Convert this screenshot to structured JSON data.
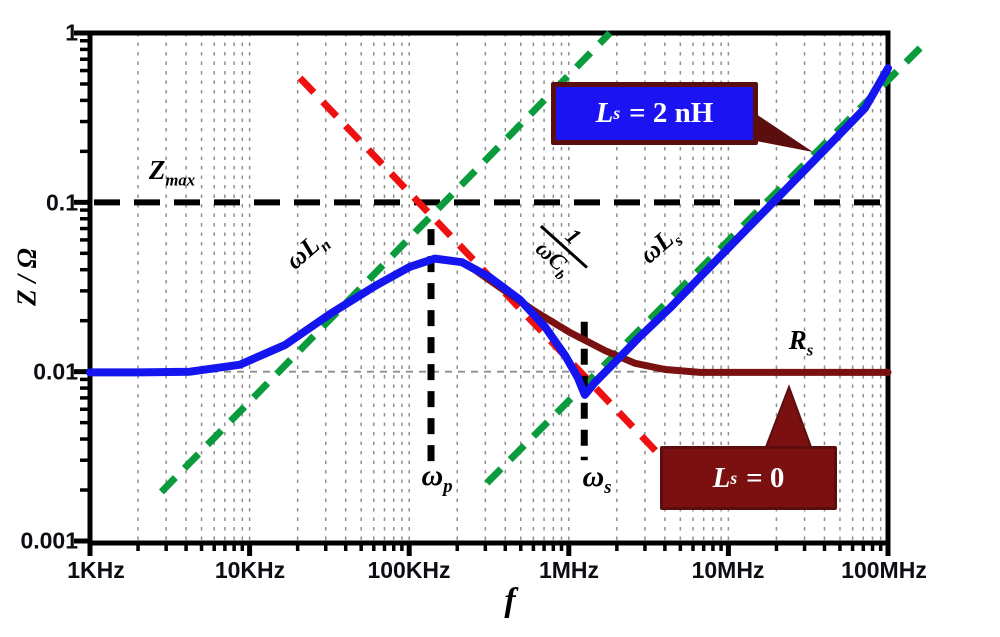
{
  "chart_data": {
    "type": "line",
    "title": "",
    "xlabel": "f",
    "ylabel": "Z / Ω",
    "x_axis": {
      "scale": "log",
      "min": 1000,
      "max": 100000000,
      "tick_labels": [
        "1KHz",
        "10KHz",
        "100KHz",
        "1MHz",
        "10MHz",
        "100MHz"
      ]
    },
    "y_axis": {
      "scale": "log",
      "min": 0.001,
      "max": 1,
      "tick_labels": [
        "1",
        "0.1",
        "0.01",
        "0.001"
      ]
    },
    "grid": "vertical log minor gridlines, dashed gray",
    "legend_position": "none (callout boxes on plot)",
    "series": [
      {
        "name": "Ls = 2 nH",
        "color": "#1515f0",
        "style": "solid",
        "points": [
          [
            1000,
            0.0099
          ],
          [
            2060,
            0.0099
          ],
          [
            4230,
            0.01
          ],
          [
            8710,
            0.011
          ],
          [
            16700,
            0.0144
          ],
          [
            31900,
            0.0219
          ],
          [
            61000,
            0.032
          ],
          [
            101000,
            0.0416
          ],
          [
            145000,
            0.0465
          ],
          [
            214000,
            0.0443
          ],
          [
            320000,
            0.0361
          ],
          [
            494000,
            0.0266
          ],
          [
            709000,
            0.0184
          ],
          [
            947000,
            0.0125
          ],
          [
            1140000,
            0.0092
          ],
          [
            1260000,
            0.0073
          ],
          [
            1450000,
            0.0086
          ],
          [
            1950000,
            0.0114
          ],
          [
            2790000,
            0.0161
          ],
          [
            4310000,
            0.0238
          ],
          [
            7130000,
            0.0388
          ],
          [
            12700000,
            0.0677
          ],
          [
            24300000,
            0.126
          ],
          [
            46500000,
            0.236
          ],
          [
            71800000,
            0.36
          ],
          [
            100000000,
            0.62
          ]
        ]
      },
      {
        "name": "Ls = 0",
        "color": "#7a1010",
        "style": "solid",
        "points": [
          [
            1000,
            0.0099
          ],
          [
            2060,
            0.0099
          ],
          [
            4230,
            0.01
          ],
          [
            8710,
            0.011
          ],
          [
            16700,
            0.0144
          ],
          [
            31900,
            0.0219
          ],
          [
            61000,
            0.032
          ],
          [
            101000,
            0.0416
          ],
          [
            145000,
            0.0465
          ],
          [
            214000,
            0.0443
          ],
          [
            258000,
            0.0399
          ],
          [
            371000,
            0.0314
          ],
          [
            614000,
            0.0227
          ],
          [
            1020000,
            0.017
          ],
          [
            1690000,
            0.0133
          ],
          [
            2600000,
            0.0112
          ],
          [
            4010000,
            0.0103
          ],
          [
            6640000,
            0.0099
          ],
          [
            100000000,
            0.0099
          ]
        ]
      }
    ],
    "asymptotes": [
      {
        "name": "ωLn",
        "color": "#0a9c3c",
        "style": "dashed",
        "points": [
          [
            2800,
            0.00195
          ],
          [
            1810000,
            1.0
          ]
        ]
      },
      {
        "name": "ωLs",
        "color": "#0a9c3c",
        "style": "dashed",
        "points": [
          [
            307000,
            0.0022
          ],
          [
            159000000,
            0.815
          ]
        ]
      },
      {
        "name": "1/(ωCb)",
        "color": "#ef1010",
        "style": "dashed",
        "points": [
          [
            20700,
            0.542
          ],
          [
            4430000,
            0.0027
          ]
        ]
      }
    ],
    "reference_lines": [
      {
        "name": "Zmax",
        "value": 0.1,
        "orientation": "horizontal",
        "color": "#000000",
        "style": "long-dash"
      },
      {
        "name": "0.01 gridline",
        "value": 0.01,
        "orientation": "horizontal",
        "color": "#8f8f8f",
        "style": "dash"
      }
    ],
    "markers": [
      {
        "name": "ωp",
        "freq": 137000,
        "z_from": 0.0029,
        "z_to": 0.0695
      },
      {
        "name": "ωs",
        "freq": 1250000,
        "z_from": 0.003,
        "z_to": 0.0197
      }
    ]
  },
  "labels": {
    "zmax": {
      "base": "Z",
      "sub": "max"
    },
    "wLn": {
      "base": "ωL",
      "sub": "n"
    },
    "frac": {
      "num": "1",
      "den_base": "ωC",
      "den_sub": "b"
    },
    "wLs": {
      "base": "ωL",
      "sub": "s"
    },
    "rs": {
      "base": "R",
      "sub": "s"
    },
    "wp": {
      "base": "ω",
      "sub": "p"
    },
    "ws": {
      "base": "ω",
      "sub": "s"
    },
    "y_title": "Z / Ω",
    "x_title": "f"
  },
  "axis": {
    "y_ticks": [
      "1",
      "0.1",
      "0.01",
      "0.001"
    ],
    "x_ticks": [
      "1KHz",
      "10KHz",
      "100KHz",
      "1MHz",
      "10MHz",
      "100MHz"
    ]
  },
  "callouts": {
    "ls2": {
      "base": "L",
      "sub": "s",
      "rest": "= 2 nH"
    },
    "ls0": {
      "base": "L",
      "sub": "s",
      "rest": "= 0"
    }
  },
  "colors": {
    "blue_curve": "#1515f0",
    "dark_red_curve": "#7a1010",
    "green_asymptote": "#0a9c3c",
    "red_asymptote": "#ef1010",
    "grid": "#8f8f8f",
    "axis": "#000000",
    "callout_blue_bg": "#1c13f2",
    "callout_red_bg": "#7a1010",
    "callout_border": "#5c0e0e",
    "tick_text": "#0d0d14"
  }
}
